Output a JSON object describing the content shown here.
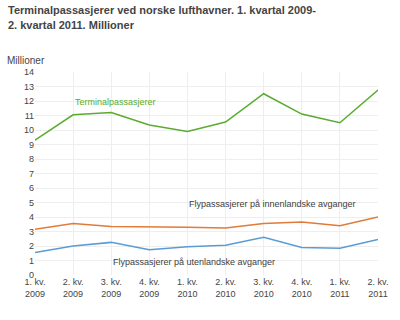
{
  "chart_data": {
    "type": "line",
    "title": "Terminalpassasjerer ved norske lufthavner. 1. kvartal 2009-\n2. kvartal 2011. Millioner",
    "ylabel": "Millioner",
    "categories": [
      "1. kv.\n2009",
      "2. kv.\n2009",
      "3. kv.\n2009",
      "4. kv.\n2009",
      "1. kv.\n2010",
      "2. kv.\n2010",
      "3. kv.\n2010",
      "4. kv.\n2010",
      "1. kv.\n2011",
      "2. kv.\n2011"
    ],
    "series": [
      {
        "color": "#5aab2e",
        "values": [
          9.3,
          11.05,
          11.2,
          10.35,
          9.9,
          10.55,
          12.5,
          11.1,
          10.5,
          12.75
        ]
      },
      {
        "color": "#e07b39",
        "values": [
          3.15,
          3.55,
          3.35,
          3.35,
          3.3,
          3.25,
          3.55,
          3.65,
          3.4,
          4.0
        ]
      },
      {
        "color": "#5b9bd5",
        "values": [
          1.55,
          2.0,
          2.25,
          1.75,
          1.95,
          2.05,
          2.6,
          1.9,
          1.85,
          2.45
        ]
      }
    ],
    "annotations": [
      {
        "text": "Terminalpassasjerer",
        "color": "#5aab2e"
      },
      {
        "text": "Flypassasjerer på innenlandske avganger",
        "color": "#404040"
      },
      {
        "text": "Flypassasjerer på utenlandske avganger",
        "color": "#404040"
      }
    ],
    "ylim": [
      0,
      14
    ],
    "yticks": [
      0,
      1,
      2,
      3,
      4,
      5,
      6,
      7,
      8,
      9,
      10,
      11,
      12,
      13,
      14
    ],
    "grid": true
  }
}
